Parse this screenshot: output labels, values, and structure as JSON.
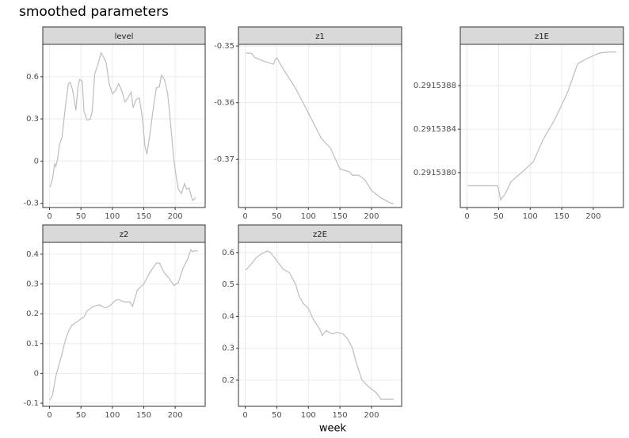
{
  "title": "smoothed parameters",
  "xlabel": "week",
  "chart_data": [
    {
      "type": "line",
      "title": "level",
      "color": "#bdbdbd",
      "grid": true,
      "xlim": [
        -10.75,
        247.75
      ],
      "xticks": [
        0,
        50,
        100,
        150,
        200
      ],
      "ylim": [
        -0.33,
        0.83
      ],
      "yticks": [
        -0.3,
        0.0,
        0.3,
        0.6
      ],
      "x": [
        1,
        5,
        8,
        10,
        13,
        16,
        20,
        25,
        30,
        33,
        37,
        42,
        45,
        48,
        52,
        55,
        60,
        65,
        68,
        72,
        78,
        82,
        86,
        90,
        95,
        100,
        105,
        110,
        115,
        120,
        125,
        130,
        133,
        138,
        143,
        148,
        152,
        155,
        160,
        165,
        170,
        175,
        178,
        183,
        188,
        193,
        198,
        202,
        205,
        210,
        215,
        218,
        222,
        225,
        228,
        233
      ],
      "values": [
        -0.185,
        -0.12,
        -0.02,
        -0.04,
        0.02,
        0.12,
        0.17,
        0.38,
        0.55,
        0.56,
        0.5,
        0.36,
        0.52,
        0.58,
        0.57,
        0.35,
        0.29,
        0.3,
        0.36,
        0.62,
        0.7,
        0.77,
        0.74,
        0.7,
        0.55,
        0.48,
        0.5,
        0.55,
        0.5,
        0.42,
        0.45,
        0.49,
        0.38,
        0.44,
        0.45,
        0.3,
        0.1,
        0.05,
        0.2,
        0.37,
        0.52,
        0.53,
        0.61,
        0.58,
        0.48,
        0.25,
        0.0,
        -0.12,
        -0.2,
        -0.23,
        -0.16,
        -0.2,
        -0.19,
        -0.24,
        -0.28,
        -0.26
      ]
    },
    {
      "type": "line",
      "title": "z1",
      "color": "#bdbdbd",
      "grid": true,
      "xlim": [
        -10.75,
        247.75
      ],
      "xticks": [
        0,
        50,
        100,
        150,
        200
      ],
      "ylim": [
        -0.3785,
        -0.3497
      ],
      "yticks": [
        -0.37,
        -0.36,
        -0.35
      ],
      "x": [
        1,
        10,
        15,
        30,
        45,
        48,
        50,
        60,
        80,
        100,
        120,
        135,
        145,
        150,
        165,
        170,
        180,
        190,
        200,
        215,
        230,
        235
      ],
      "values": [
        -0.3512,
        -0.3513,
        -0.352,
        -0.3527,
        -0.3532,
        -0.3523,
        -0.3521,
        -0.354,
        -0.3575,
        -0.3618,
        -0.3662,
        -0.368,
        -0.3705,
        -0.3717,
        -0.3722,
        -0.3728,
        -0.3728,
        -0.3737,
        -0.3755,
        -0.3768,
        -0.3777,
        -0.3778
      ]
    },
    {
      "type": "line",
      "title": "z1E",
      "color": "#bdbdbd",
      "grid": true,
      "xlim": [
        -10.75,
        247.75
      ],
      "xticks": [
        0,
        50,
        100,
        150,
        200
      ],
      "ylim": [
        0.29153768,
        0.29153918
      ],
      "yticks": [
        {
          "value": 0.291538,
          "label": "0.2915380"
        },
        {
          "value": 0.2915384,
          "label": "0.2915384"
        },
        {
          "value": 0.2915388,
          "label": "0.2915388"
        }
      ],
      "x": [
        1,
        48,
        50,
        53,
        60,
        70,
        90,
        105,
        120,
        140,
        160,
        175,
        190,
        210,
        225,
        236
      ],
      "values": [
        0.29153788,
        0.29153788,
        0.29153785,
        0.29153775,
        0.2915378,
        0.29153792,
        0.29153802,
        0.2915381,
        0.2915383,
        0.2915385,
        0.29153875,
        0.291539,
        0.29153905,
        0.2915391,
        0.29153911,
        0.29153911
      ]
    },
    {
      "type": "line",
      "title": "z2",
      "color": "#bdbdbd",
      "grid": true,
      "xlim": [
        -10.75,
        247.75
      ],
      "xticks": [
        0,
        50,
        100,
        150,
        200
      ],
      "ylim": [
        -0.1106,
        0.4397
      ],
      "yticks": [
        -0.1,
        0.0,
        0.1,
        0.2,
        0.3,
        0.4
      ],
      "x": [
        1,
        5,
        10,
        15,
        18,
        25,
        30,
        35,
        45,
        55,
        60,
        70,
        80,
        88,
        95,
        105,
        110,
        118,
        128,
        132,
        140,
        150,
        160,
        170,
        175,
        182,
        190,
        198,
        205,
        212,
        220,
        225,
        228,
        232,
        236
      ],
      "values": [
        -0.09,
        -0.07,
        -0.01,
        0.03,
        0.05,
        0.11,
        0.14,
        0.16,
        0.175,
        0.19,
        0.21,
        0.225,
        0.23,
        0.22,
        0.225,
        0.245,
        0.248,
        0.24,
        0.24,
        0.225,
        0.28,
        0.3,
        0.34,
        0.37,
        0.37,
        0.34,
        0.32,
        0.295,
        0.305,
        0.35,
        0.385,
        0.415,
        0.408,
        0.412,
        0.41
      ]
    },
    {
      "type": "line",
      "title": "z2E",
      "color": "#bdbdbd",
      "grid": true,
      "xlim": [
        -10.75,
        247.75
      ],
      "xticks": [
        0,
        50,
        100,
        150,
        200
      ],
      "ylim": [
        0.118,
        0.632
      ],
      "yticks": [
        0.2,
        0.3,
        0.4,
        0.5,
        0.6
      ],
      "x": [
        1,
        10,
        18,
        25,
        35,
        40,
        50,
        60,
        70,
        80,
        85,
        92,
        100,
        108,
        118,
        122,
        128,
        138,
        145,
        155,
        162,
        170,
        175,
        185,
        195,
        208,
        215,
        225,
        235
      ],
      "values": [
        0.545,
        0.565,
        0.585,
        0.595,
        0.605,
        0.6,
        0.575,
        0.548,
        0.537,
        0.5,
        0.465,
        0.44,
        0.425,
        0.39,
        0.36,
        0.34,
        0.355,
        0.345,
        0.35,
        0.345,
        0.33,
        0.3,
        0.26,
        0.2,
        0.18,
        0.16,
        0.14,
        0.14,
        0.14
      ]
    }
  ]
}
